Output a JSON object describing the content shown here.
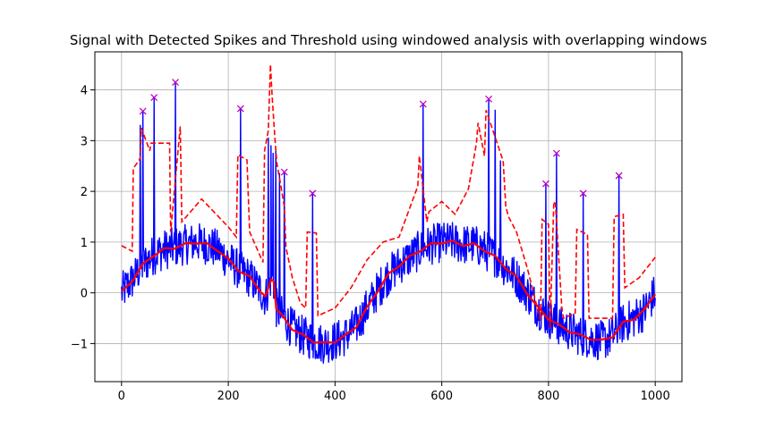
{
  "chart_data": {
    "type": "line",
    "title": "Signal with Detected Spikes and Threshold using windowed analysis with overlapping windows",
    "xlabel": "",
    "ylabel": "",
    "xlim": [
      -50,
      1050
    ],
    "ylim": [
      -1.75,
      4.75
    ],
    "xticks": [
      0,
      200,
      400,
      600,
      800,
      1000
    ],
    "yticks": [
      -1,
      0,
      1,
      2,
      3,
      4
    ],
    "grid": true,
    "legend": "none",
    "colors": {
      "signal": "#0000ff",
      "smoothed": "#ff0000",
      "threshold": "#ff0000",
      "spike_marker": "#bf00bf"
    },
    "spikes": [
      {
        "x": 40,
        "y": 3.58
      },
      {
        "x": 61,
        "y": 3.85
      },
      {
        "x": 101,
        "y": 4.15
      },
      {
        "x": 223,
        "y": 3.63
      },
      {
        "x": 305,
        "y": 2.38
      },
      {
        "x": 358,
        "y": 1.96
      },
      {
        "x": 565,
        "y": 3.72
      },
      {
        "x": 688,
        "y": 3.82
      },
      {
        "x": 795,
        "y": 2.15
      },
      {
        "x": 815,
        "y": 2.75
      },
      {
        "x": 865,
        "y": 1.96
      },
      {
        "x": 932,
        "y": 2.31
      }
    ],
    "extra_spike_lines": [
      {
        "x": 35,
        "y": 3.3
      },
      {
        "x": 275,
        "y": 3.05
      },
      {
        "x": 280,
        "y": 2.9
      },
      {
        "x": 284,
        "y": 2.75
      },
      {
        "x": 289,
        "y": 2.8
      },
      {
        "x": 296,
        "y": 2.35
      },
      {
        "x": 700,
        "y": 3.6
      },
      {
        "x": 710,
        "y": 2.6
      }
    ],
    "threshold": {
      "x": [
        0,
        20,
        22,
        35,
        37,
        53,
        55,
        90,
        92,
        110,
        113,
        150,
        200,
        215,
        218,
        235,
        240,
        265,
        268,
        275,
        279,
        282,
        287,
        291,
        297,
        305,
        308,
        320,
        335,
        345,
        348,
        365,
        368,
        400,
        430,
        460,
        490,
        520,
        555,
        558,
        572,
        576,
        600,
        625,
        650,
        665,
        668,
        680,
        683,
        715,
        720,
        725,
        740,
        760,
        785,
        788,
        800,
        803,
        810,
        813,
        825,
        828,
        850,
        853,
        873,
        876,
        920,
        923,
        940,
        943,
        970,
        1000
      ],
      "y": [
        0.93,
        0.82,
        2.45,
        2.65,
        3.25,
        2.8,
        2.95,
        2.95,
        1.2,
        3.28,
        1.4,
        1.85,
        1.3,
        1.1,
        2.72,
        2.62,
        1.2,
        0.6,
        2.8,
        3.2,
        4.5,
        3.9,
        3.1,
        2.55,
        2.2,
        1.7,
        0.9,
        0.3,
        -0.2,
        -0.3,
        1.2,
        1.18,
        -0.45,
        -0.3,
        0.1,
        0.65,
        1.0,
        1.1,
        2.1,
        2.7,
        1.4,
        1.6,
        1.8,
        1.55,
        2.05,
        2.95,
        3.35,
        2.7,
        3.6,
        2.6,
        1.7,
        1.5,
        1.2,
        0.5,
        -0.55,
        1.45,
        1.35,
        -0.7,
        1.8,
        1.75,
        -0.3,
        -0.5,
        -0.4,
        1.25,
        1.15,
        -0.5,
        -0.5,
        1.5,
        1.55,
        0.1,
        0.3,
        0.7
      ]
    },
    "smoothed": {
      "x": [
        0,
        20,
        40,
        60,
        80,
        100,
        120,
        140,
        160,
        180,
        200,
        220,
        240,
        260,
        270,
        280,
        285,
        290,
        300,
        320,
        340,
        360,
        380,
        400,
        420,
        440,
        460,
        480,
        500,
        520,
        540,
        560,
        580,
        600,
        620,
        640,
        660,
        680,
        700,
        720,
        740,
        760,
        780,
        800,
        820,
        840,
        860,
        880,
        900,
        920,
        940,
        960,
        980,
        1000
      ],
      "y": [
        0.0,
        0.25,
        0.55,
        0.75,
        0.85,
        0.9,
        0.95,
        1.0,
        0.95,
        0.85,
        0.65,
        0.45,
        0.3,
        0.05,
        -0.1,
        0.3,
        0.2,
        -0.3,
        -0.45,
        -0.7,
        -0.85,
        -0.95,
        -1.0,
        -0.95,
        -0.85,
        -0.65,
        -0.3,
        0.05,
        0.35,
        0.55,
        0.7,
        0.85,
        0.95,
        1.0,
        1.0,
        0.95,
        0.95,
        0.85,
        0.7,
        0.5,
        0.3,
        0.0,
        -0.3,
        -0.5,
        -0.65,
        -0.75,
        -0.85,
        -0.9,
        -0.95,
        -0.85,
        -0.6,
        -0.5,
        -0.35,
        0.0
      ]
    }
  }
}
